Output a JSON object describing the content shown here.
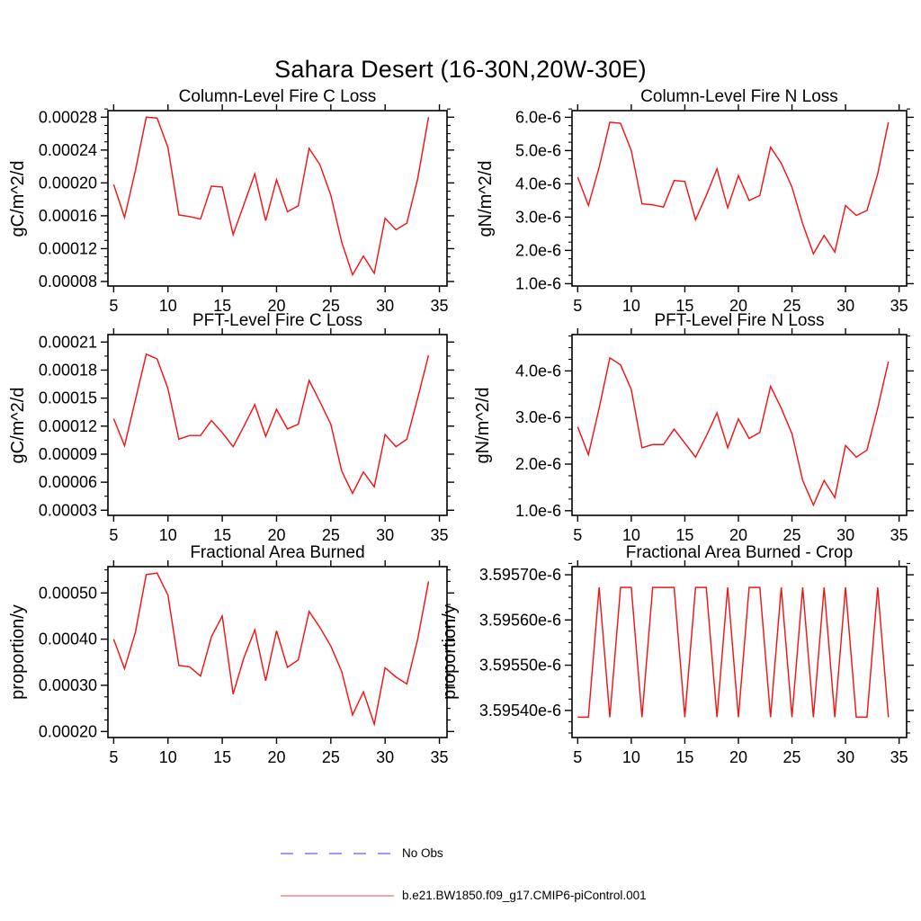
{
  "page": {
    "title": "Sahara Desert (16-30N,20W-30E)",
    "background": "#ffffff"
  },
  "legend": {
    "items": [
      {
        "label": "No Obs",
        "line_style": "dashed",
        "color": "#7b7bf0"
      },
      {
        "label": "b.e21.BW1850.f09_g17.CMIP6-piControl.001",
        "line_style": "solid",
        "color": "#f08a86"
      }
    ]
  },
  "chart_data": [
    {
      "id": "column-level-fire-c-loss",
      "type": "line",
      "title": "Column-Level Fire C Loss",
      "ylabel": "gC/m^2/d",
      "line_color": "#f21515",
      "x": [
        5,
        6,
        7,
        8,
        9,
        10,
        11,
        12,
        13,
        14,
        15,
        16,
        17,
        18,
        19,
        20,
        21,
        22,
        23,
        24,
        25,
        26,
        27,
        28,
        29,
        30,
        31,
        32,
        33,
        34
      ],
      "y": [
        0.000198,
        0.000158,
        0.000215,
        0.00028,
        0.000279,
        0.000243,
        0.000161,
        0.000159,
        0.000156,
        0.000196,
        0.000195,
        0.000137,
        0.000174,
        0.000211,
        0.000154,
        0.000204,
        0.000165,
        0.000172,
        0.000242,
        0.000222,
        0.000185,
        0.000128,
        8.8e-05,
        0.000111,
        9e-05,
        0.000157,
        0.000143,
        0.000151,
        0.000205,
        0.00028
      ],
      "xlim": [
        4.47,
        35.7
      ],
      "ylim": [
        7.45e-05,
        0.000288
      ],
      "xtick_values": [
        5,
        10,
        15,
        20,
        25,
        30,
        35
      ],
      "xtick_labels": [
        "5",
        "10",
        "15",
        "20",
        "25",
        "30",
        "35"
      ],
      "ytick_values": [
        8e-05,
        0.00012,
        0.00016,
        0.0002,
        0.00024,
        0.00028
      ],
      "ytick_labels": [
        "0.00008",
        "0.00012",
        "0.00016",
        "0.00020",
        "0.00024",
        "0.00028"
      ]
    },
    {
      "id": "column-level-fire-n-loss",
      "type": "line",
      "title": "Column-Level Fire N Loss",
      "ylabel": "gN/m^2/d",
      "line_color": "#f21515",
      "x": [
        5,
        6,
        7,
        8,
        9,
        10,
        11,
        12,
        13,
        14,
        15,
        16,
        17,
        18,
        19,
        20,
        21,
        22,
        23,
        24,
        25,
        26,
        27,
        28,
        29,
        30,
        31,
        32,
        33,
        34
      ],
      "y": [
        4.2e-06,
        3.35e-06,
        4.5e-06,
        5.85e-06,
        5.82e-06,
        5e-06,
        3.4e-06,
        3.37e-06,
        3.3e-06,
        4.1e-06,
        4.07e-06,
        2.92e-06,
        3.65e-06,
        4.45e-06,
        3.28e-06,
        4.25e-06,
        3.5e-06,
        3.65e-06,
        5.1e-06,
        4.62e-06,
        3.9e-06,
        2.8e-06,
        1.9e-06,
        2.45e-06,
        1.95e-06,
        3.35e-06,
        3.05e-06,
        3.2e-06,
        4.3e-06,
        5.85e-06
      ],
      "xlim": [
        4.47,
        35.7
      ],
      "ylim": [
        9.3e-07,
        6.2e-06
      ],
      "xtick_values": [
        5,
        10,
        15,
        20,
        25,
        30,
        35
      ],
      "xtick_labels": [
        "5",
        "10",
        "15",
        "20",
        "25",
        "30",
        "35"
      ],
      "ytick_values": [
        1e-06,
        2e-06,
        3e-06,
        4e-06,
        5e-06,
        6e-06
      ],
      "ytick_labels": [
        "1.0e-6",
        "2.0e-6",
        "3.0e-6",
        "4.0e-6",
        "5.0e-6",
        "6.0e-6"
      ]
    },
    {
      "id": "pft-level-fire-c-loss",
      "type": "line",
      "title": "PFT-Level Fire C Loss",
      "ylabel": "gC/m^2/d",
      "line_color": "#f21515",
      "x": [
        5,
        6,
        7,
        8,
        9,
        10,
        11,
        12,
        13,
        14,
        15,
        16,
        17,
        18,
        19,
        20,
        21,
        22,
        23,
        24,
        25,
        26,
        27,
        28,
        29,
        30,
        31,
        32,
        33,
        34
      ],
      "y": [
        0.000128,
        9.9e-05,
        0.000148,
        0.000197,
        0.000192,
        0.00016,
        0.000106,
        0.00011,
        0.00011,
        0.000126,
        0.000113,
        9.8e-05,
        0.00012,
        0.000143,
        0.000109,
        0.000138,
        0.000117,
        0.000122,
        0.000169,
        0.000146,
        0.000122,
        7.2e-05,
        4.8e-05,
        7.1e-05,
        5.5e-05,
        0.000111,
        9.8e-05,
        0.000106,
        0.00015,
        0.000196
      ],
      "xlim": [
        4.47,
        35.7
      ],
      "ylim": [
        2.45e-05,
        0.000218
      ],
      "xtick_values": [
        5,
        10,
        15,
        20,
        25,
        30,
        35
      ],
      "xtick_labels": [
        "5",
        "10",
        "15",
        "20",
        "25",
        "30",
        "35"
      ],
      "ytick_values": [
        3e-05,
        6e-05,
        9e-05,
        0.00012,
        0.00015,
        0.00018,
        0.00021
      ],
      "ytick_labels": [
        "0.00003",
        "0.00006",
        "0.00009",
        "0.00012",
        "0.00015",
        "0.00018",
        "0.00021"
      ]
    },
    {
      "id": "pft-level-fire-n-loss",
      "type": "line",
      "title": "PFT-Level Fire N Loss",
      "ylabel": "gN/m^2/d",
      "line_color": "#f21515",
      "x": [
        5,
        6,
        7,
        8,
        9,
        10,
        11,
        12,
        13,
        14,
        15,
        16,
        17,
        18,
        19,
        20,
        21,
        22,
        23,
        24,
        25,
        26,
        27,
        28,
        29,
        30,
        31,
        32,
        33,
        34
      ],
      "y": [
        2.8e-06,
        2.2e-06,
        3.2e-06,
        4.28e-06,
        4.13e-06,
        3.6e-06,
        2.35e-06,
        2.42e-06,
        2.42e-06,
        2.75e-06,
        2.45e-06,
        2.15e-06,
        2.6e-06,
        3.1e-06,
        2.35e-06,
        2.97e-06,
        2.55e-06,
        2.68e-06,
        3.67e-06,
        3.2e-06,
        2.65e-06,
        1.65e-06,
        1.12e-06,
        1.65e-06,
        1.28e-06,
        2.4e-06,
        2.15e-06,
        2.3e-06,
        3.2e-06,
        4.2e-06
      ],
      "xlim": [
        4.47,
        35.7
      ],
      "ylim": [
        9e-07,
        4.78e-06
      ],
      "xtick_values": [
        5,
        10,
        15,
        20,
        25,
        30,
        35
      ],
      "xtick_labels": [
        "5",
        "10",
        "15",
        "20",
        "25",
        "30",
        "35"
      ],
      "ytick_values": [
        1e-06,
        2e-06,
        3e-06,
        4e-06
      ],
      "ytick_labels": [
        "1.0e-6",
        "2.0e-6",
        "3.0e-6",
        "4.0e-6"
      ]
    },
    {
      "id": "fractional-area-burned",
      "type": "line",
      "title": "Fractional Area Burned",
      "ylabel": "proportion/y",
      "line_color": "#f21515",
      "x": [
        5,
        6,
        7,
        8,
        9,
        10,
        11,
        12,
        13,
        14,
        15,
        16,
        17,
        18,
        19,
        20,
        21,
        22,
        23,
        24,
        25,
        26,
        27,
        28,
        29,
        30,
        31,
        32,
        33,
        34
      ],
      "y": [
        0.0004,
        0.000336,
        0.000415,
        0.00054,
        0.000543,
        0.000495,
        0.000343,
        0.00034,
        0.00032,
        0.000405,
        0.00045,
        0.000281,
        0.00036,
        0.00042,
        0.00031,
        0.000418,
        0.000339,
        0.000355,
        0.00046,
        0.000425,
        0.000385,
        0.00033,
        0.000236,
        0.000286,
        0.000216,
        0.000338,
        0.000318,
        0.000303,
        0.0004,
        0.000525
      ],
      "xlim": [
        4.47,
        35.7
      ],
      "ylim": [
        0.000187,
        0.000557
      ],
      "xtick_values": [
        5,
        10,
        15,
        20,
        25,
        30,
        35
      ],
      "xtick_labels": [
        "5",
        "10",
        "15",
        "20",
        "25",
        "30",
        "35"
      ],
      "ytick_values": [
        0.0002,
        0.0003,
        0.0004,
        0.0005
      ],
      "ytick_labels": [
        "0.00020",
        "0.00030",
        "0.00040",
        "0.00050"
      ]
    },
    {
      "id": "fractional-area-burned-crop",
      "type": "line",
      "title": "Fractional Area Burned - Crop",
      "ylabel": "proportion/y",
      "line_color": "#f21515",
      "x": [
        5,
        6,
        7,
        8,
        9,
        10,
        11,
        12,
        13,
        14,
        15,
        16,
        17,
        18,
        19,
        20,
        21,
        22,
        23,
        24,
        25,
        26,
        27,
        28,
        29,
        30,
        31,
        32,
        33,
        34
      ],
      "y": [
        3.595385e-06,
        3.595385e-06,
        3.595672e-06,
        3.595385e-06,
        3.595672e-06,
        3.595672e-06,
        3.595385e-06,
        3.595672e-06,
        3.595672e-06,
        3.595672e-06,
        3.595385e-06,
        3.595672e-06,
        3.595672e-06,
        3.595385e-06,
        3.595672e-06,
        3.595385e-06,
        3.595672e-06,
        3.595672e-06,
        3.595385e-06,
        3.595672e-06,
        3.595385e-06,
        3.595672e-06,
        3.595385e-06,
        3.595672e-06,
        3.595385e-06,
        3.595672e-06,
        3.595385e-06,
        3.595385e-06,
        3.595672e-06,
        3.595385e-06
      ],
      "xlim": [
        4.47,
        35.7
      ],
      "ylim": [
        3.59534e-06,
        3.595718e-06
      ],
      "xtick_values": [
        5,
        10,
        15,
        20,
        25,
        30,
        35
      ],
      "xtick_labels": [
        "5",
        "10",
        "15",
        "20",
        "25",
        "30",
        "35"
      ],
      "ytick_values": [
        3.5954e-06,
        3.5955e-06,
        3.5956e-06,
        3.5957e-06
      ],
      "ytick_labels": [
        "3.59540e-6",
        "3.59550e-6",
        "3.59560e-6",
        "3.59570e-6"
      ]
    }
  ]
}
